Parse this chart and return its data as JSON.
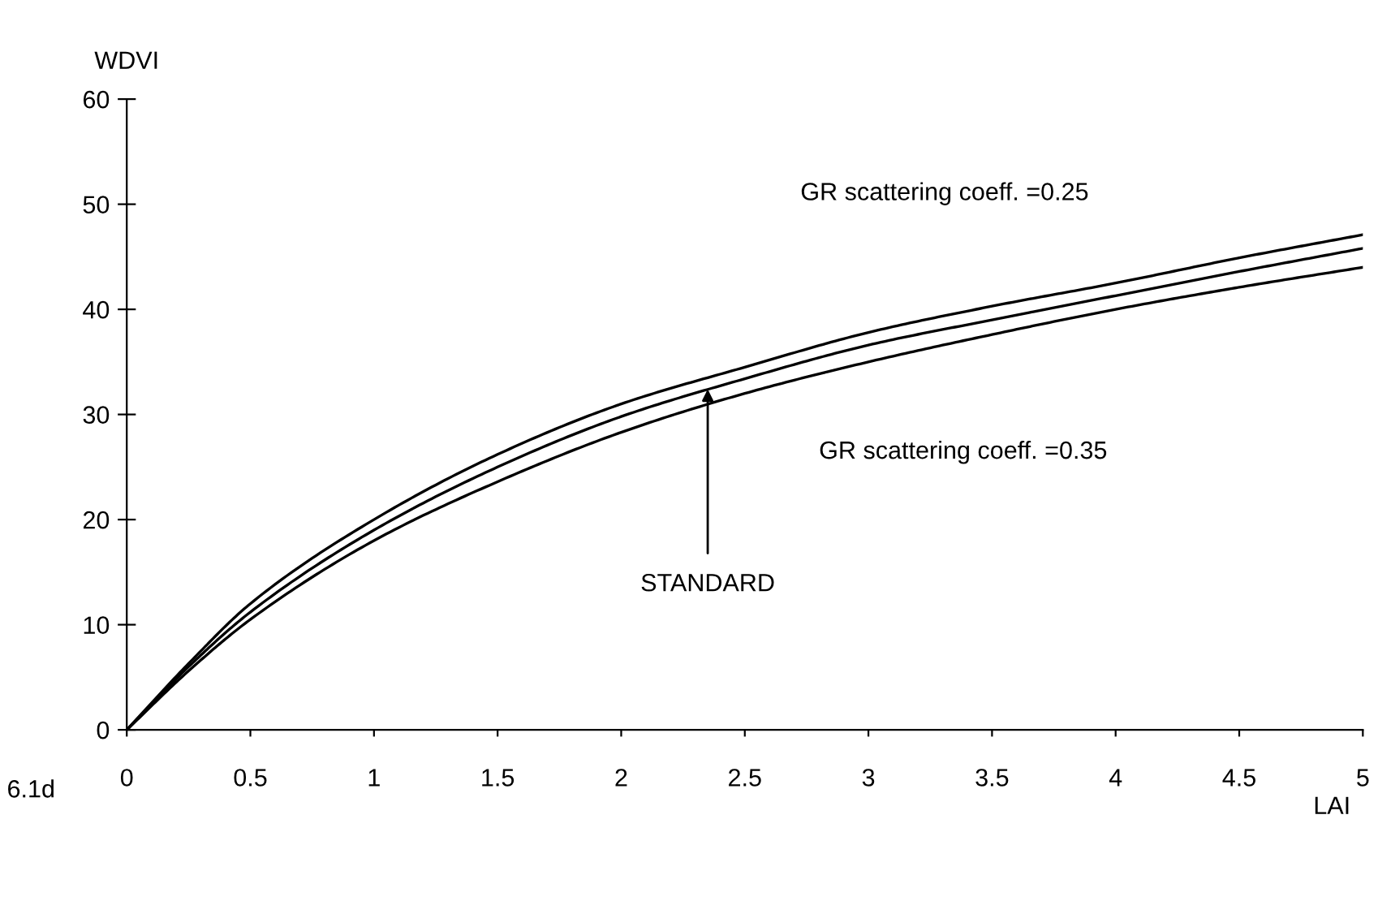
{
  "chart_data": {
    "type": "line",
    "xlabel": "LAI",
    "ylabel": "WDVI",
    "x": [
      0,
      0.25,
      0.5,
      1,
      1.5,
      2,
      2.5,
      3,
      3.5,
      4,
      4.5,
      5
    ],
    "series": [
      {
        "color": "#000000",
        "values": [
          0,
          6.3,
          12,
          20,
          26.2,
          31,
          34.5,
          37.8,
          40.3,
          42.5,
          44.9,
          47.1
        ]
      },
      {
        "color": "#000000",
        "values": [
          0,
          6,
          11.2,
          19,
          25,
          29.8,
          33.4,
          36.6,
          39,
          41.3,
          43.6,
          45.8
        ]
      },
      {
        "color": "#000000",
        "values": [
          0,
          5.6,
          10.5,
          18,
          23.6,
          28.3,
          32,
          35,
          37.6,
          40,
          42.1,
          44
        ]
      }
    ],
    "xlim": [
      0,
      5
    ],
    "ylim": [
      0,
      60
    ],
    "xticks": [
      0,
      0.5,
      1,
      1.5,
      2,
      2.5,
      3,
      3.5,
      4,
      4.5,
      5
    ],
    "yticks": [
      0,
      10,
      20,
      30,
      40,
      50,
      60
    ],
    "grid": false,
    "legend": false,
    "marker": "none",
    "line_style": "solid",
    "annotations": [
      "GR scattering coeff. =0.25",
      {
        "text": "STANDARD",
        "x": 2.35,
        "y": 32.4
      },
      "GR scattering coeff. =0.35",
      "6.1d"
    ]
  }
}
